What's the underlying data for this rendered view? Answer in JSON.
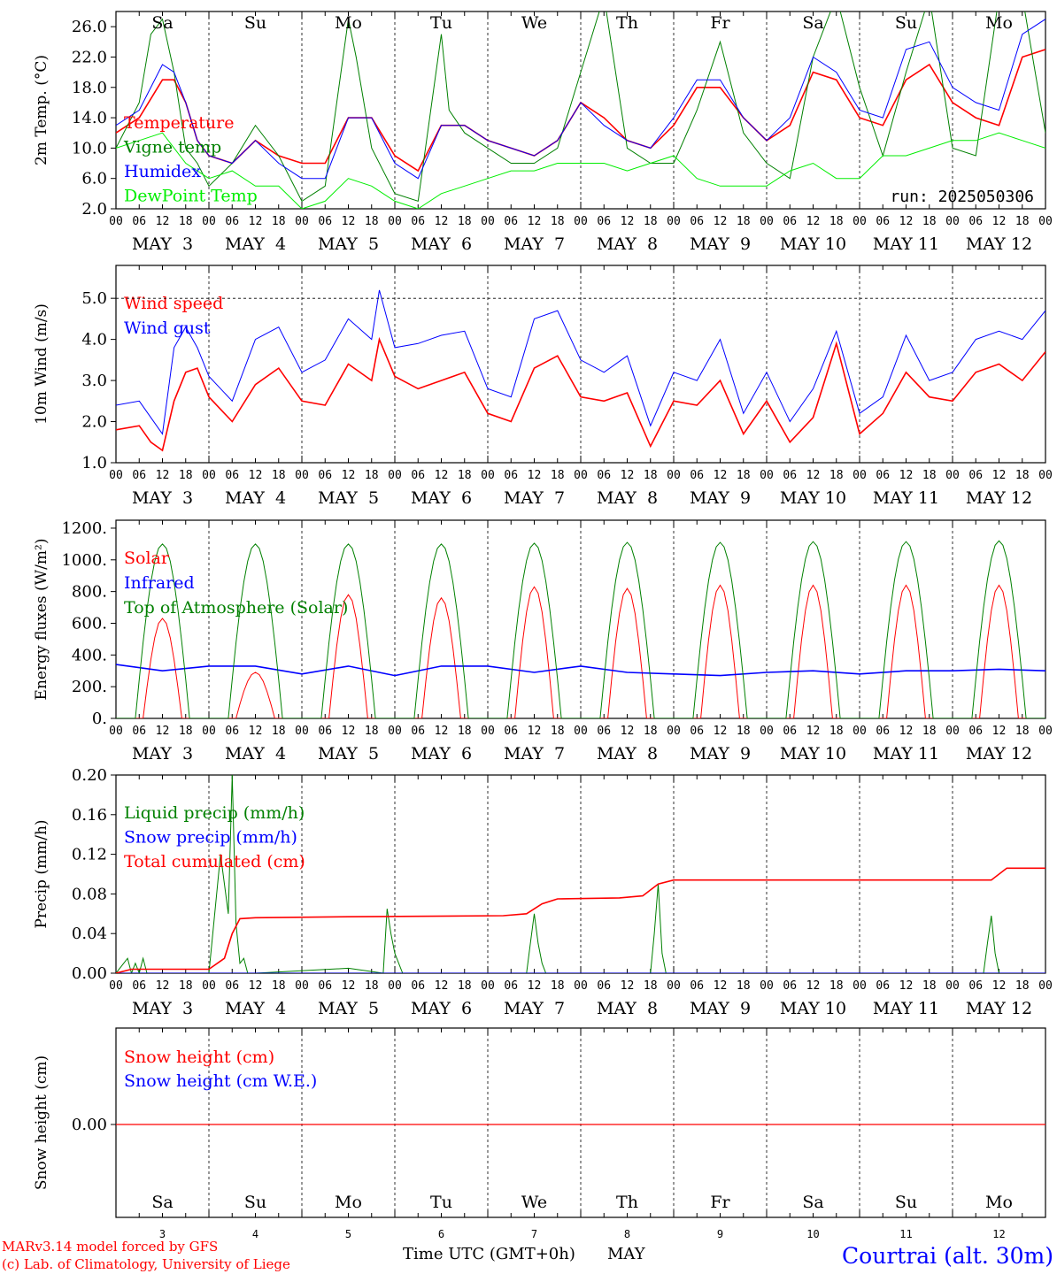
{
  "colors": {
    "red": "#ff0000",
    "green": "#008000",
    "blue": "#0000ff",
    "lightgreen": "#00ee00",
    "weekend": "#ff0000",
    "weekday": "#000000"
  },
  "days": [
    {
      "abbr": "Sa",
      "date": "MAY  3",
      "num": "3",
      "weekend": true
    },
    {
      "abbr": "Su",
      "date": "MAY  4",
      "num": "4",
      "weekend": true
    },
    {
      "abbr": "Mo",
      "date": "MAY  5",
      "num": "5",
      "weekend": false
    },
    {
      "abbr": "Tu",
      "date": "MAY  6",
      "num": "6",
      "weekend": false
    },
    {
      "abbr": "We",
      "date": "MAY  7",
      "num": "7",
      "weekend": false
    },
    {
      "abbr": "Th",
      "date": "MAY  8",
      "num": "8",
      "weekend": false
    },
    {
      "abbr": "Fr",
      "date": "MAY  9",
      "num": "9",
      "weekend": false
    },
    {
      "abbr": "Sa",
      "date": "MAY 10",
      "num": "10",
      "weekend": true
    },
    {
      "abbr": "Su",
      "date": "MAY 11",
      "num": "11",
      "weekend": true
    },
    {
      "abbr": "Mo",
      "date": "MAY 12",
      "num": "12",
      "weekend": false
    }
  ],
  "hour_ticks": [
    "00",
    "06",
    "12",
    "18"
  ],
  "run_label": "run: 2025050306",
  "footer": {
    "model": "MARv3.14 model forced by GFS",
    "lab": "(c) Lab. of Climatology, University of Liege",
    "xlabel": "Time UTC (GMT+0h)",
    "month": "MAY",
    "station": "Courtrai (alt. 30m)"
  },
  "chart_data": [
    {
      "type": "line",
      "ylabel": "2m Temp. (°C)",
      "ylim": [
        2,
        28
      ],
      "yticks": [
        "2.0",
        "6.0",
        "10.0",
        "14.0",
        "18.0",
        "22.0",
        "26.0"
      ],
      "x_unit": "hours from 2025-05-03 00 UTC",
      "series": [
        {
          "name": "Temperature",
          "color": "red",
          "x": [
            0,
            6,
            12,
            15,
            18,
            21,
            24,
            30,
            36,
            42,
            48,
            54,
            60,
            66,
            72,
            78,
            84,
            90,
            96,
            102,
            108,
            114,
            120,
            126,
            132,
            138,
            144,
            150,
            156,
            162,
            168,
            174,
            180,
            186,
            192,
            198,
            204,
            210,
            216,
            222,
            228,
            234,
            240
          ],
          "y": [
            12,
            14,
            19,
            19,
            16,
            11,
            9,
            8,
            11,
            9,
            8,
            8,
            14,
            14,
            9,
            7,
            13,
            13,
            11,
            10,
            9,
            11,
            16,
            14,
            11,
            10,
            13,
            18,
            18,
            14,
            11,
            13,
            20,
            19,
            14,
            13,
            19,
            21,
            16,
            14,
            13,
            22,
            23
          ]
        },
        {
          "name": "Vigne temp",
          "color": "green",
          "x": [
            0,
            6,
            9,
            12,
            15,
            18,
            21,
            24,
            30,
            36,
            42,
            48,
            54,
            60,
            62,
            66,
            72,
            78,
            84,
            86,
            90,
            96,
            102,
            108,
            114,
            120,
            126,
            132,
            138,
            144,
            150,
            156,
            162,
            168,
            174,
            180,
            186,
            192,
            198,
            204,
            210,
            216,
            222,
            228,
            234,
            240
          ],
          "y": [
            10,
            16,
            25,
            27,
            20,
            10,
            8,
            5,
            8,
            13,
            9,
            3,
            5,
            27,
            22,
            10,
            4,
            3,
            25,
            15,
            12,
            10,
            8,
            8,
            10,
            20,
            30,
            10,
            8,
            8,
            15,
            24,
            12,
            8,
            6,
            22,
            30,
            18,
            9,
            20,
            30,
            10,
            9,
            30,
            30,
            12
          ]
        },
        {
          "name": "Humidex",
          "color": "blue",
          "x": [
            0,
            6,
            12,
            15,
            18,
            21,
            24,
            30,
            36,
            42,
            48,
            54,
            60,
            66,
            72,
            78,
            84,
            90,
            96,
            102,
            108,
            114,
            120,
            126,
            132,
            138,
            144,
            150,
            156,
            162,
            168,
            174,
            180,
            186,
            192,
            198,
            204,
            210,
            216,
            222,
            228,
            234,
            240
          ],
          "y": [
            13,
            15,
            21,
            20,
            16,
            11,
            9,
            8,
            11,
            8,
            6,
            6,
            14,
            14,
            8,
            6,
            13,
            13,
            11,
            10,
            9,
            11,
            16,
            13,
            11,
            10,
            14,
            19,
            19,
            14,
            11,
            14,
            22,
            20,
            15,
            14,
            23,
            24,
            18,
            16,
            15,
            25,
            27
          ]
        },
        {
          "name": "DewPoint Temp",
          "color": "lightgreen",
          "x": [
            0,
            6,
            12,
            18,
            24,
            30,
            36,
            42,
            48,
            54,
            60,
            66,
            72,
            78,
            84,
            90,
            96,
            102,
            108,
            114,
            120,
            126,
            132,
            138,
            144,
            150,
            156,
            162,
            168,
            174,
            180,
            186,
            192,
            198,
            204,
            210,
            216,
            222,
            228,
            234,
            240
          ],
          "y": [
            10,
            11,
            12,
            8,
            6,
            7,
            5,
            5,
            2,
            3,
            6,
            5,
            3,
            2,
            4,
            5,
            6,
            7,
            7,
            8,
            8,
            8,
            7,
            8,
            9,
            6,
            5,
            5,
            5,
            7,
            8,
            6,
            6,
            9,
            9,
            10,
            11,
            11,
            12,
            11,
            10
          ]
        }
      ]
    },
    {
      "type": "line",
      "ylabel": "10m Wind (m/s)",
      "ylim": [
        1,
        5.8
      ],
      "yticks": [
        "1.0",
        "2.0",
        "3.0",
        "4.0",
        "5.0"
      ],
      "series": [
        {
          "name": "Wind speed",
          "color": "red",
          "x": [
            0,
            6,
            9,
            12,
            15,
            18,
            21,
            24,
            30,
            36,
            42,
            48,
            54,
            60,
            66,
            68,
            72,
            78,
            84,
            90,
            96,
            102,
            108,
            114,
            120,
            126,
            132,
            138,
            144,
            150,
            156,
            162,
            168,
            174,
            180,
            186,
            192,
            198,
            204,
            210,
            216,
            222,
            228,
            234,
            240
          ],
          "y": [
            1.8,
            1.9,
            1.5,
            1.3,
            2.5,
            3.2,
            3.3,
            2.6,
            2.0,
            2.9,
            3.3,
            2.5,
            2.4,
            3.4,
            3.0,
            4.0,
            3.1,
            2.8,
            3.0,
            3.2,
            2.2,
            2.0,
            3.3,
            3.6,
            2.6,
            2.5,
            2.7,
            1.4,
            2.5,
            2.4,
            3.0,
            1.7,
            2.5,
            1.5,
            2.1,
            3.9,
            1.7,
            2.2,
            3.2,
            2.6,
            2.5,
            3.2,
            3.4,
            3.0,
            3.7
          ]
        },
        {
          "name": "Wind gust",
          "color": "blue",
          "x": [
            0,
            6,
            9,
            12,
            15,
            18,
            21,
            24,
            30,
            36,
            42,
            48,
            54,
            60,
            66,
            68,
            72,
            78,
            84,
            90,
            96,
            102,
            108,
            114,
            120,
            126,
            132,
            138,
            144,
            150,
            156,
            162,
            168,
            174,
            180,
            186,
            192,
            198,
            204,
            210,
            216,
            222,
            228,
            234,
            240
          ],
          "y": [
            2.4,
            2.5,
            2.1,
            1.7,
            3.8,
            4.3,
            3.8,
            3.1,
            2.5,
            4.0,
            4.3,
            3.2,
            3.5,
            4.5,
            4.0,
            5.2,
            3.8,
            3.9,
            4.1,
            4.2,
            2.8,
            2.6,
            4.5,
            4.7,
            3.5,
            3.2,
            3.6,
            1.9,
            3.2,
            3.0,
            4.0,
            2.2,
            3.2,
            2.0,
            2.8,
            4.2,
            2.2,
            2.6,
            4.1,
            3.0,
            3.2,
            4.0,
            4.2,
            4.0,
            4.7
          ]
        }
      ]
    },
    {
      "type": "line",
      "ylabel": "Energy fluxes (W/m²)",
      "ylim": [
        0,
        1250
      ],
      "yticks": [
        "0.",
        "200.",
        "400.",
        "600.",
        "800.",
        "1000.",
        "1200."
      ],
      "series": [
        {
          "name": "Solar",
          "color": "red",
          "peaks": [
            630,
            290,
            780,
            760,
            830,
            820,
            840,
            840,
            840,
            840
          ]
        },
        {
          "name": "Infrared",
          "color": "blue",
          "x": [
            0,
            12,
            24,
            36,
            48,
            60,
            72,
            84,
            96,
            108,
            120,
            132,
            144,
            156,
            168,
            180,
            192,
            204,
            216,
            228,
            240
          ],
          "y": [
            340,
            300,
            330,
            330,
            280,
            330,
            270,
            330,
            330,
            290,
            330,
            290,
            280,
            270,
            290,
            300,
            280,
            300,
            300,
            310,
            300
          ]
        },
        {
          "name": "Top of Atmosphere (Solar)",
          "color": "green",
          "peaks": [
            1100,
            1100,
            1100,
            1100,
            1105,
            1110,
            1110,
            1115,
            1115,
            1120
          ]
        }
      ]
    },
    {
      "type": "line",
      "ylabel": "Precip (mm/h)",
      "ylim": [
        0,
        0.2
      ],
      "yticks": [
        "0.00",
        "0.04",
        "0.08",
        "0.12",
        "0.16",
        "0.20"
      ],
      "series": [
        {
          "name": "Liquid precip (mm/h)",
          "color": "green",
          "x": [
            0,
            3,
            4,
            5,
            6,
            7,
            8,
            9,
            24,
            27,
            29,
            30,
            31,
            32,
            33,
            34,
            35,
            36,
            60,
            69,
            70,
            71,
            72,
            73,
            74,
            106,
            107,
            108,
            109,
            110,
            111,
            138,
            139,
            140,
            141,
            142,
            224,
            225,
            226,
            227,
            228
          ],
          "y": [
            0,
            0.015,
            0,
            0.01,
            0,
            0.015,
            0,
            0,
            0,
            0.12,
            0.06,
            0.2,
            0.05,
            0.01,
            0.015,
            0,
            0,
            0,
            0.005,
            0,
            0.065,
            0.04,
            0.02,
            0.01,
            0,
            0,
            0.03,
            0.06,
            0.03,
            0.01,
            0,
            0,
            0.04,
            0.09,
            0.02,
            0,
            0,
            0.03,
            0.058,
            0.02,
            0
          ]
        },
        {
          "name": "Snow precip (mm/h)",
          "color": "blue",
          "x": [
            0,
            240
          ],
          "y": [
            0,
            0
          ]
        },
        {
          "name": "Total cumulated (cm)",
          "color": "red",
          "x": [
            0,
            4,
            24,
            28,
            30,
            32,
            36,
            60,
            100,
            106,
            110,
            114,
            130,
            136,
            140,
            144,
            160,
            226,
            230,
            240
          ],
          "y": [
            0,
            0.004,
            0.004,
            0.015,
            0.04,
            0.055,
            0.056,
            0.057,
            0.058,
            0.06,
            0.07,
            0.075,
            0.076,
            0.078,
            0.09,
            0.094,
            0.094,
            0.094,
            0.106,
            0.106
          ]
        }
      ]
    },
    {
      "type": "line",
      "ylabel": "Snow height (cm)",
      "yticks": [
        "0.00"
      ],
      "series": [
        {
          "name": "Snow height (cm)",
          "color": "red",
          "x": [
            0,
            240
          ],
          "y": [
            0,
            0
          ]
        },
        {
          "name": "Snow height (cm W.E.)",
          "color": "blue",
          "x": [
            0,
            240
          ],
          "y": [
            0,
            0
          ]
        }
      ]
    }
  ]
}
